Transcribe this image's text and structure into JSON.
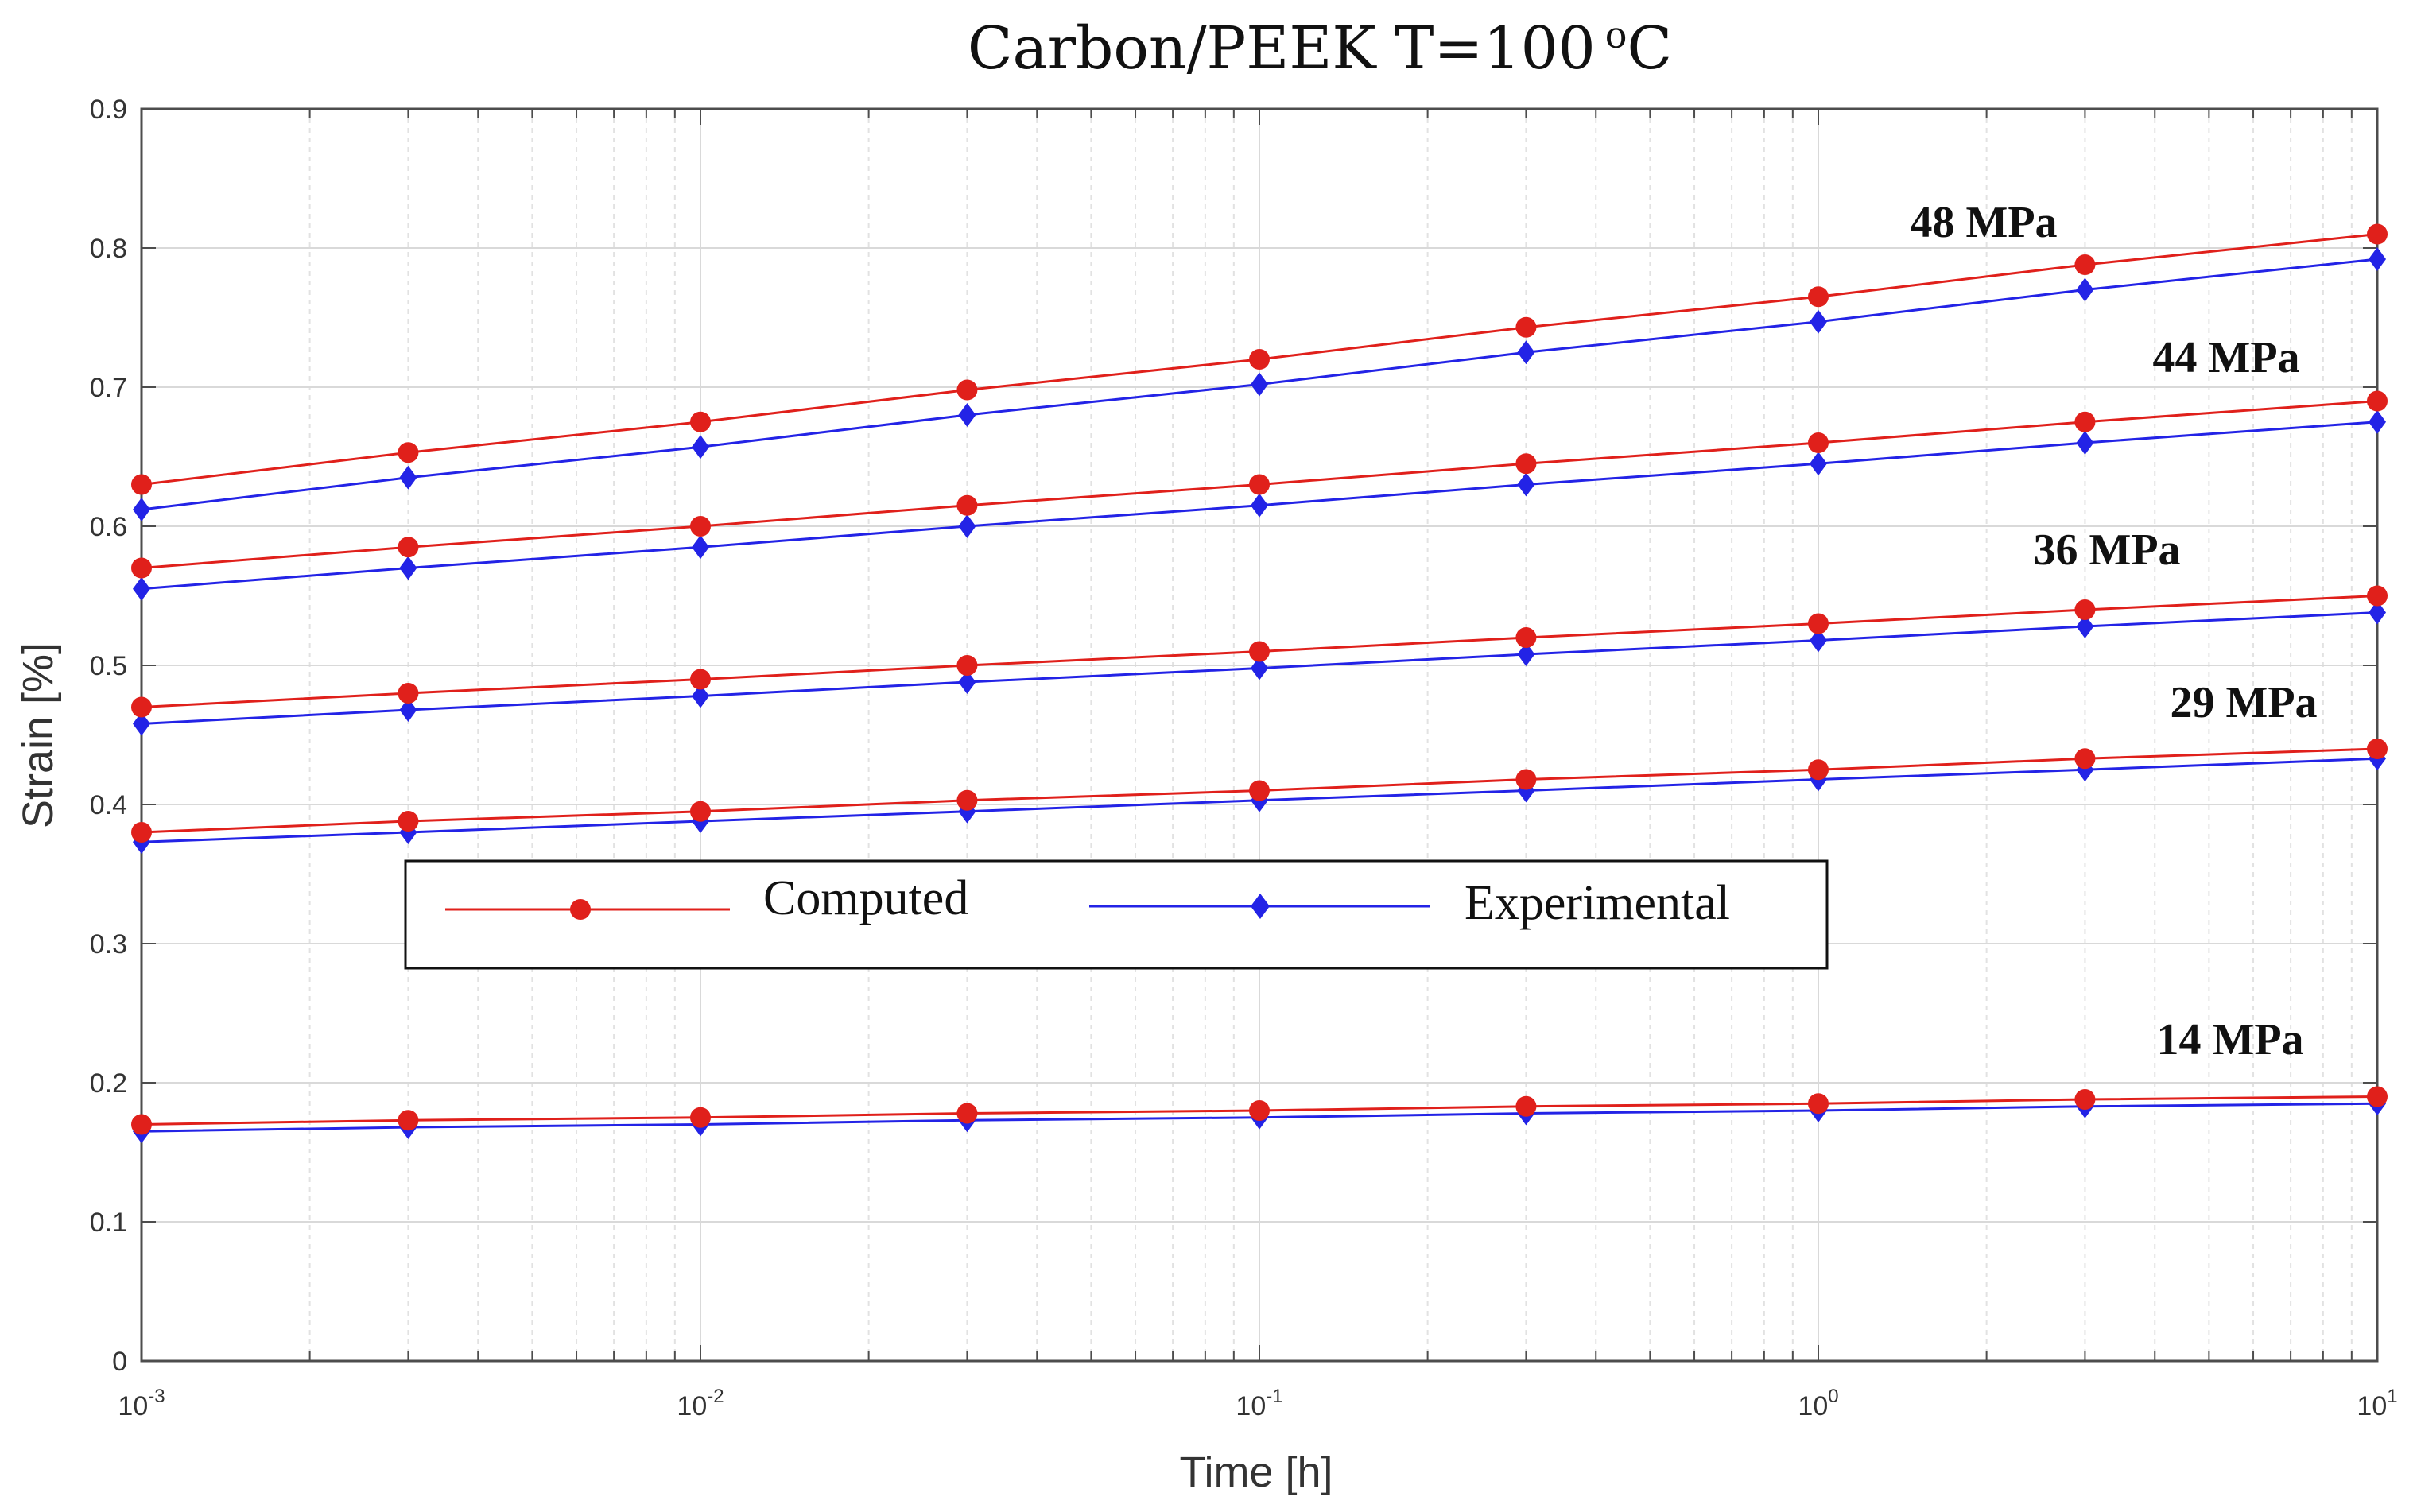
{
  "chart_data": {
    "type": "line",
    "title": "Carbon/PEEK  T=100",
    "title_superscript": "o",
    "title_unit": "C",
    "xlabel": "Time [h]",
    "ylabel": "Strain [%]",
    "xscale": "log",
    "xlim": [
      0.001,
      10
    ],
    "ylim": [
      0,
      0.9
    ],
    "grid": true,
    "x": [
      0.001,
      0.003,
      0.01,
      0.03,
      0.1,
      0.3,
      1,
      3,
      10
    ],
    "x_ticks": [
      {
        "value": 0.001,
        "base": "10",
        "exp": "-3"
      },
      {
        "value": 0.01,
        "base": "10",
        "exp": "-2"
      },
      {
        "value": 0.1,
        "base": "10",
        "exp": "-1"
      },
      {
        "value": 1,
        "base": "10",
        "exp": "0"
      },
      {
        "value": 10,
        "base": "10",
        "exp": "1"
      }
    ],
    "y_ticks": [
      "0",
      "0.1",
      "0.2",
      "0.3",
      "0.4",
      "0.5",
      "0.6",
      "0.7",
      "0.8",
      "0.9"
    ],
    "legend": {
      "position": "center-left",
      "entries": [
        {
          "name": "Computed",
          "color": "#e0201b",
          "marker": "circle"
        },
        {
          "name": "Experimental",
          "color": "#2323e6",
          "marker": "diamond"
        }
      ]
    },
    "groups": [
      {
        "label": "48 MPa",
        "computed": [
          0.63,
          0.653,
          0.675,
          0.698,
          0.72,
          0.743,
          0.765,
          0.788,
          0.81
        ],
        "experimental": [
          0.612,
          0.635,
          0.657,
          0.68,
          0.702,
          0.725,
          0.747,
          0.77,
          0.792
        ]
      },
      {
        "label": "44 MPa",
        "computed": [
          0.57,
          0.585,
          0.6,
          0.615,
          0.63,
          0.645,
          0.66,
          0.675,
          0.69
        ],
        "experimental": [
          0.555,
          0.57,
          0.585,
          0.6,
          0.615,
          0.63,
          0.645,
          0.66,
          0.675
        ]
      },
      {
        "label": "36 MPa",
        "computed": [
          0.47,
          0.48,
          0.49,
          0.5,
          0.51,
          0.52,
          0.53,
          0.54,
          0.55
        ],
        "experimental": [
          0.458,
          0.468,
          0.478,
          0.488,
          0.498,
          0.508,
          0.518,
          0.528,
          0.538
        ]
      },
      {
        "label": "29 MPa",
        "computed": [
          0.38,
          0.388,
          0.395,
          0.403,
          0.41,
          0.418,
          0.425,
          0.433,
          0.44
        ],
        "experimental": [
          0.373,
          0.38,
          0.388,
          0.395,
          0.403,
          0.41,
          0.418,
          0.425,
          0.433
        ]
      },
      {
        "label": "14 MPa",
        "computed": [
          0.17,
          0.173,
          0.175,
          0.178,
          0.18,
          0.183,
          0.185,
          0.188,
          0.19
        ],
        "experimental": [
          0.165,
          0.168,
          0.17,
          0.173,
          0.175,
          0.178,
          0.18,
          0.183,
          0.185
        ]
      }
    ]
  }
}
